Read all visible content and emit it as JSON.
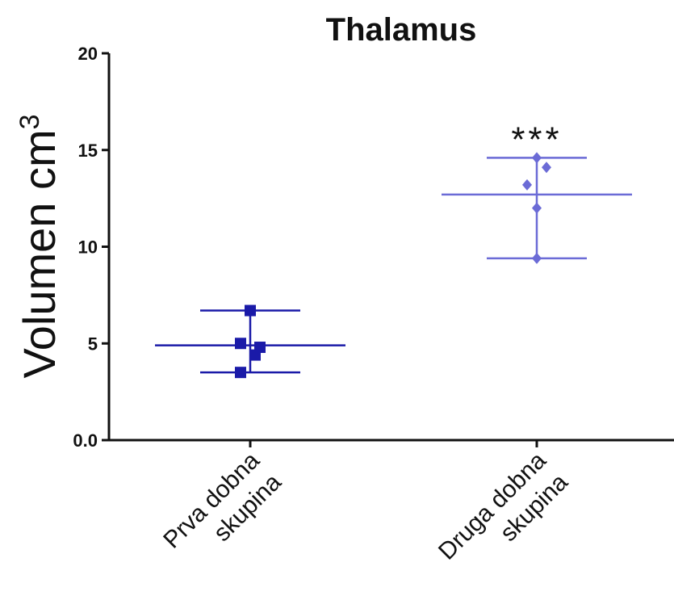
{
  "chart_data": {
    "type": "scatter",
    "title": "Thalamus",
    "ylabel": "Volumen cm",
    "ylabel_superscript": "3",
    "ylim": [
      0,
      20
    ],
    "yticks": [
      {
        "value": 0,
        "label": "0.0"
      },
      {
        "value": 5,
        "label": "5"
      },
      {
        "value": 10,
        "label": "10"
      },
      {
        "value": 15,
        "label": "15"
      },
      {
        "value": 20,
        "label": "20"
      }
    ],
    "grid": false,
    "categories": [
      {
        "line1": "Prva dobna",
        "line2": "skupina"
      },
      {
        "line1": "Druga dobna",
        "line2": "skupina"
      }
    ],
    "series": [
      {
        "color": "#1a1aa8",
        "marker": "square",
        "points": [
          6.7,
          5.0,
          4.8,
          4.4,
          3.5
        ],
        "jitter": [
          0,
          -1,
          1,
          0.5,
          -1
        ],
        "mean": 4.9,
        "sd_upper": 6.7,
        "sd_lower": 3.5
      },
      {
        "color": "#6b6bd6",
        "marker": "diamond",
        "points": [
          14.6,
          14.1,
          13.2,
          12.0,
          9.4
        ],
        "jitter": [
          0,
          1,
          -1,
          0,
          0
        ],
        "mean": 12.7,
        "sd_upper": 14.6,
        "sd_lower": 9.4
      }
    ],
    "annotations": [
      {
        "category_index": 1,
        "text": "***"
      }
    ]
  }
}
